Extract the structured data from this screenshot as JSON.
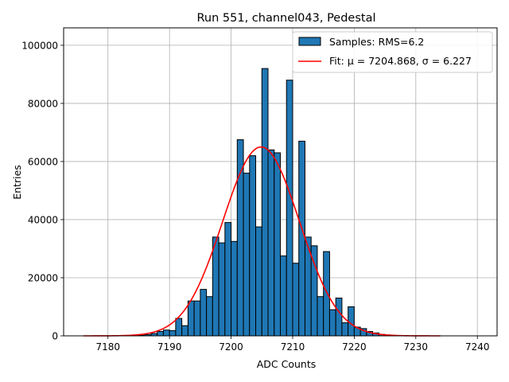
{
  "chart_data": {
    "type": "bar",
    "title": "Run 551, channel043, Pedestal",
    "xlabel": "ADC Counts",
    "ylabel": "Entries",
    "xlim": [
      7172.8,
      7243.2
    ],
    "ylim": [
      0,
      106000
    ],
    "xticks": [
      7180,
      7190,
      7200,
      7210,
      7220,
      7230,
      7240
    ],
    "yticks": [
      0,
      20000,
      40000,
      60000,
      80000,
      100000
    ],
    "xtick_labels": [
      "7180",
      "7190",
      "7200",
      "7210",
      "7220",
      "7230",
      "7240"
    ],
    "ytick_labels": [
      "0",
      "20000",
      "40000",
      "60000",
      "80000",
      "100000"
    ],
    "grid": true,
    "legend_position": "upper-right",
    "bin_width": 1,
    "histogram": {
      "name": "Samples: RMS=6.2",
      "color": "#1f77b4",
      "edge_color": "#000000",
      "bin_start": 7185,
      "counts": [
        200,
        400,
        800,
        1500,
        2000,
        1800,
        6000,
        3500,
        12000,
        12000,
        16000,
        13500,
        34000,
        32000,
        39000,
        32500,
        67500,
        56000,
        62000,
        37500,
        92000,
        64000,
        63000,
        27500,
        88000,
        25000,
        67000,
        34000,
        31000,
        13500,
        29000,
        9000,
        13000,
        4500,
        10000,
        3000,
        2500,
        1500,
        1000,
        500,
        300
      ]
    },
    "fit": {
      "name": "Fit: μ = 7204.868, σ = 6.227",
      "color": "#ff0000",
      "mu": 7204.868,
      "sigma": 6.227,
      "amplitude": 65000,
      "x_range": [
        7176,
        7234
      ]
    }
  }
}
